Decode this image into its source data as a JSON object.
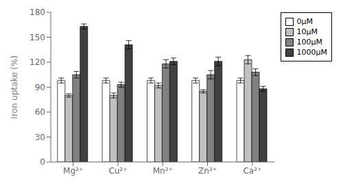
{
  "chart_data": {
    "type": "bar",
    "categories": [
      "Mg²⁺",
      "Cu²⁺",
      "Mn²⁺",
      "Zn²⁺",
      "Ca²⁺"
    ],
    "series": [
      {
        "name": "0μM",
        "color": "#ffffff",
        "values": [
          98,
          98,
          98,
          98,
          98
        ],
        "errors": [
          3,
          3,
          3,
          3,
          3
        ]
      },
      {
        "name": "10μM",
        "color": "#c0c0c0",
        "values": [
          80,
          80,
          92,
          85,
          123
        ],
        "errors": [
          2,
          3,
          3,
          2,
          5
        ]
      },
      {
        "name": "100μM",
        "color": "#808080",
        "values": [
          105,
          93,
          118,
          105,
          108
        ],
        "errors": [
          4,
          3,
          5,
          5,
          4
        ]
      },
      {
        "name": "1000μM",
        "color": "#404040",
        "values": [
          163,
          141,
          121,
          121,
          88
        ],
        "errors": [
          3,
          5,
          4,
          5,
          3
        ]
      }
    ],
    "ylabel": "Iron uptake (%)",
    "ylim": [
      0,
      180
    ],
    "yticks": [
      0,
      30,
      60,
      90,
      120,
      150,
      180
    ],
    "legend": "upper right",
    "grid": false
  }
}
